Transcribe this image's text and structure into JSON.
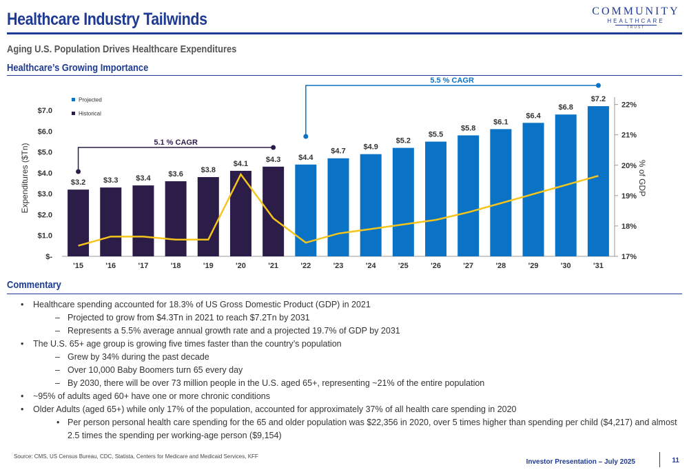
{
  "header": {
    "title": "Healthcare Industry Tailwinds",
    "logo": {
      "main": "COMMUNITY",
      "sub": "HEALTHCARE",
      "trust": "TRUST"
    }
  },
  "subtitle": "Aging U.S. Population Drives Healthcare Expenditures",
  "section_chart": "Healthcare’s Growing Importance",
  "section_commentary": "Commentary",
  "chart_data": {
    "type": "bar",
    "categories": [
      "'15",
      "'16",
      "'17",
      "'18",
      "'19",
      "'20",
      "'21",
      "'22",
      "'23",
      "'24",
      "'25",
      "'26",
      "'27",
      "'28",
      "'29",
      "'30",
      "'31"
    ],
    "series": [
      {
        "name": "Historical",
        "values": [
          3.2,
          3.3,
          3.4,
          3.6,
          3.8,
          4.1,
          4.3,
          null,
          null,
          null,
          null,
          null,
          null,
          null,
          null,
          null,
          null
        ],
        "color": "#2c1c48"
      },
      {
        "name": "Projected",
        "values": [
          null,
          null,
          null,
          null,
          null,
          null,
          null,
          4.4,
          4.7,
          4.9,
          5.2,
          5.5,
          5.8,
          6.1,
          6.4,
          6.8,
          7.2
        ],
        "color": "#0b73c6"
      }
    ],
    "bar_labels": [
      "$3.2",
      "$3.3",
      "$3.4",
      "$3.6",
      "$3.8",
      "$4.1",
      "$4.3",
      "$4.4",
      "$4.7",
      "$4.9",
      "$5.2",
      "$5.5",
      "$5.8",
      "$6.1",
      "$6.4",
      "$6.8",
      "$7.2"
    ],
    "line_series": {
      "values": [
        17.35,
        17.65,
        17.65,
        17.55,
        17.55,
        19.7,
        18.25,
        17.45,
        17.75,
        17.9,
        18.05,
        18.2,
        18.45,
        18.75,
        19.05,
        19.35,
        19.65
      ],
      "color": "#f5c51b"
    },
    "ylabel": "Expenditures ($Tn)",
    "y2label": "% of GDP",
    "ylim": [
      0,
      7.5
    ],
    "y2lim": [
      17,
      22.15
    ],
    "yticks": [
      0,
      1,
      2,
      3,
      4,
      5,
      6,
      7
    ],
    "ytick_labels": [
      "$-",
      "$1.0",
      "$2.0",
      "$3.0",
      "$4.0",
      "$5.0",
      "$6.0",
      "$7.0"
    ],
    "y2ticks": [
      17,
      18,
      19,
      20,
      21,
      22
    ],
    "y2tick_labels": [
      "17%",
      "18%",
      "19%",
      "20%",
      "21%",
      "22%"
    ],
    "legend": [
      "Projected",
      "Historical"
    ],
    "annotations": [
      {
        "text": "5.1 % CAGR",
        "from": 0,
        "to": 6,
        "color": "#2c1c48"
      },
      {
        "text": "5.5 % CAGR",
        "from": 7,
        "to": 16,
        "color": "#0b73c6"
      }
    ]
  },
  "commentary": [
    {
      "level": 1,
      "marker": "•",
      "text": "Healthcare spending accounted for 18.3% of US Gross Domestic Product (GDP) in 2021"
    },
    {
      "level": 2,
      "marker": "–",
      "text": "Projected to grow from $4.3Tn in 2021 to reach $7.2Tn by 2031"
    },
    {
      "level": 2,
      "marker": "–",
      "text": "Represents a 5.5% average annual growth rate and a projected 19.7% of GDP by 2031"
    },
    {
      "level": 1,
      "marker": "•",
      "text": "The U.S. 65+ age group is growing five times faster than the country’s population"
    },
    {
      "level": 2,
      "marker": "–",
      "text": "Grew by 34% during the past decade"
    },
    {
      "level": 2,
      "marker": "–",
      "text": "Over 10,000 Baby Boomers turn 65 every day"
    },
    {
      "level": 2,
      "marker": "–",
      "text": "By 2030, there will be over 73 million people in the U.S. aged 65+, representing ~21% of the entire population"
    },
    {
      "level": 1,
      "marker": "•",
      "text": "~95% of adults aged 60+ have one or more chronic conditions"
    },
    {
      "level": 1,
      "marker": "•",
      "text": "Older Adults (aged 65+) while only 17% of the population, accounted for approximately 37% of all health care spending in 2020"
    },
    {
      "level": 3,
      "marker": "•",
      "text": "Per person personal health care spending for the 65 and older population was $22,356 in 2020, over 5 times higher than spending per child ($4,217) and almost 2.5 times the spending per working-age person ($9,154)"
    }
  ],
  "footer": {
    "source": "Source: CMS, US Census Bureau, CDC, Statista, Centers for Medicare and Medicaid Services, KFF",
    "presentation": "Investor Presentation – July 2025",
    "page": "11"
  }
}
